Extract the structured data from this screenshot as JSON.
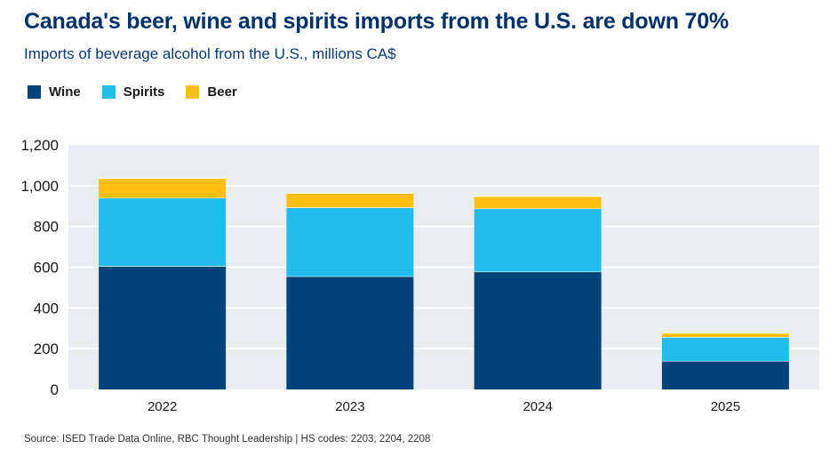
{
  "title": "Canada's beer, wine and spirits imports from the U.S. are down 70%",
  "subtitle": "Imports of beverage alcohol from the U.S., millions CA$",
  "source": "Source: ISED Trade Data Online, RBC Thought Leadership | HS codes: 2203, 2204, 2208",
  "colors": {
    "wine": "#00437a",
    "spirits": "#21bbec",
    "beer": "#fdbe10",
    "plot_background": "#e9edf1",
    "gridline": "#ffffff"
  },
  "chart_data": {
    "type": "bar",
    "stacked": true,
    "categories": [
      "2022",
      "2023",
      "2024",
      "2025"
    ],
    "series": [
      {
        "name": "Wine",
        "color": "#00437a",
        "values": [
          605,
          555,
          578,
          140
        ]
      },
      {
        "name": "Spirits",
        "color": "#21bbec",
        "values": [
          335,
          338,
          310,
          117
        ]
      },
      {
        "name": "Beer",
        "color": "#fdbe10",
        "values": [
          97,
          70,
          60,
          20
        ]
      }
    ],
    "ylim": [
      0,
      1200
    ],
    "yticks": [
      "0",
      "200",
      "400",
      "600",
      "800",
      "1,000",
      "1,200"
    ],
    "ytick_values": [
      0,
      200,
      400,
      600,
      800,
      1000,
      1200
    ],
    "grid": true,
    "legend_position": "top-left"
  }
}
